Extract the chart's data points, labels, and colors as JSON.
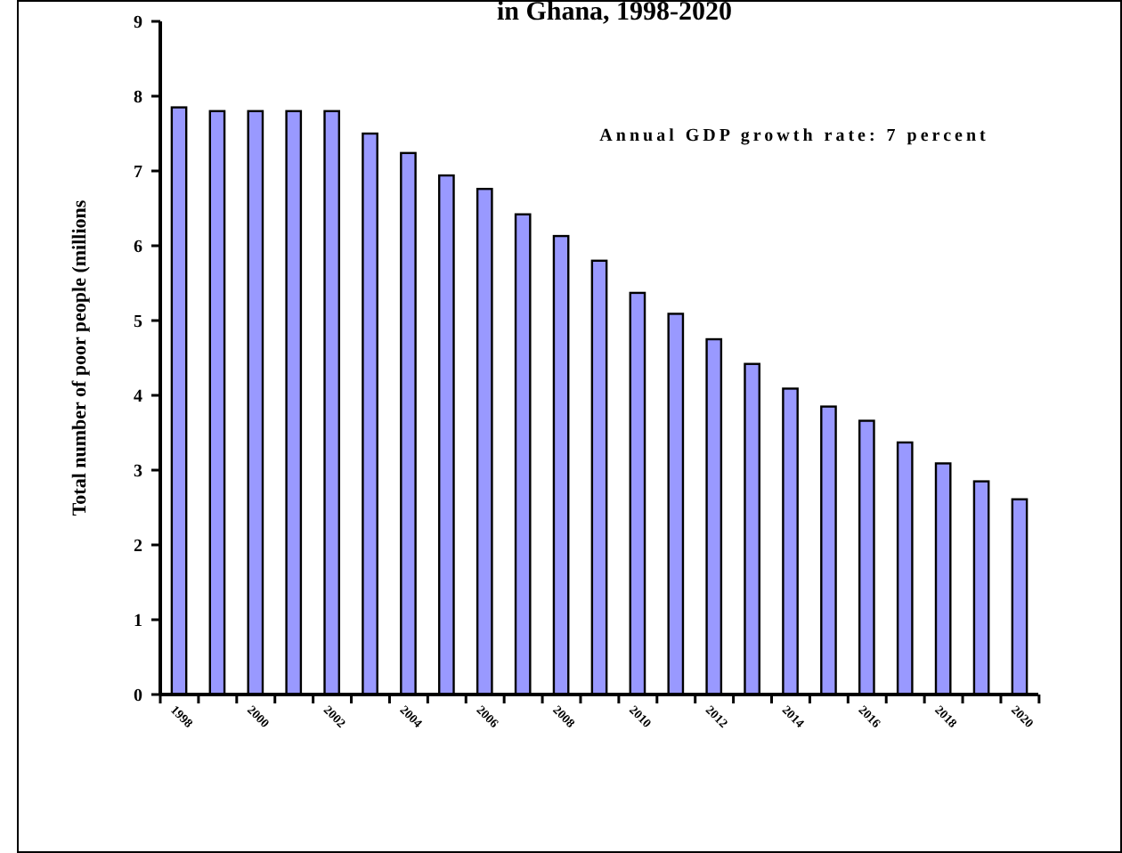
{
  "chart_data": {
    "type": "bar",
    "title": "in Ghana, 1998-2020",
    "ylabel": "Total number of poor people (millions",
    "annotations": [
      "Annual GDP growth rate: 7 percent"
    ],
    "categories": [
      "1998",
      null,
      "2000",
      null,
      "2002",
      null,
      "2004",
      null,
      "2006",
      null,
      "2008",
      null,
      "2010",
      null,
      "2012",
      null,
      "2014",
      null,
      "2016",
      null,
      "2018",
      null,
      "2020"
    ],
    "values": [
      7.85,
      7.8,
      7.8,
      7.8,
      7.8,
      7.5,
      7.24,
      6.94,
      6.76,
      6.42,
      6.13,
      5.8,
      5.37,
      5.09,
      4.75,
      4.42,
      4.09,
      3.85,
      3.66,
      3.37,
      3.09,
      2.85,
      2.61
    ],
    "color": "#9999ff",
    "ylim": [
      0,
      9
    ],
    "yticks": [
      0,
      1,
      2,
      3,
      4,
      5,
      6,
      7,
      8,
      9
    ]
  }
}
